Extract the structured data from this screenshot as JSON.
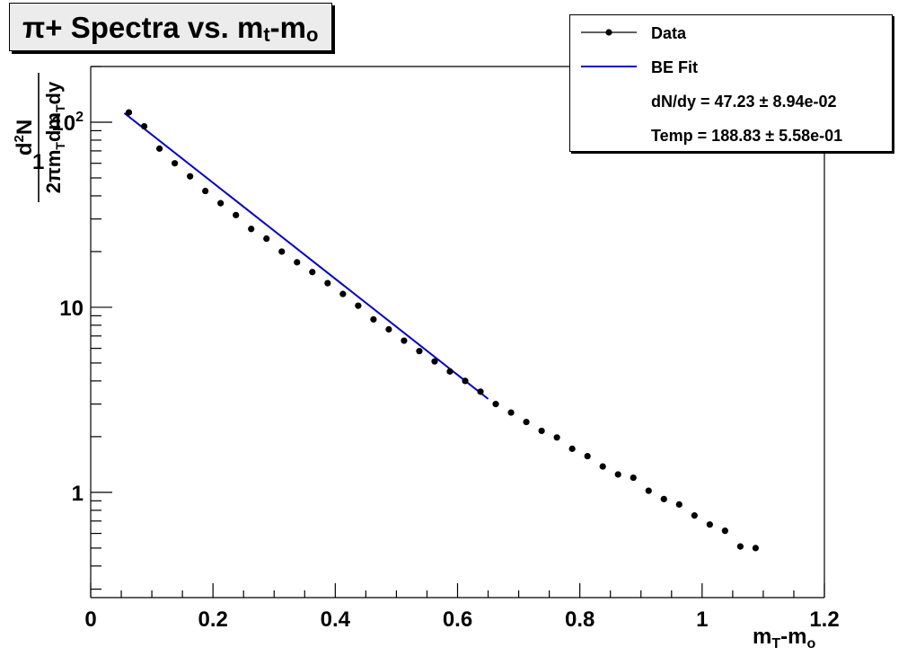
{
  "chart_data": {
    "type": "scatter",
    "title": "π+ Spectra vs. m_t-m_o",
    "title_main": "π+ Spectra vs. m",
    "title_sub1": "t",
    "title_mid": "-m",
    "title_sub2": "o",
    "xlabel": "m_T-m_o",
    "xlabel_main": "m",
    "xlabel_sub1": "T",
    "xlabel_mid": "-m",
    "xlabel_sub2": "o",
    "ylabel": "1/(2πm_T dm_T dy) d²N",
    "xlim": [
      0,
      1.2
    ],
    "ylim": [
      0.27,
      200
    ],
    "yscale": "log",
    "grid": false,
    "x_ticks": [
      "0",
      "0.2",
      "0.4",
      "0.6",
      "0.8",
      "1",
      "1.2"
    ],
    "x_tick_values": [
      0,
      0.2,
      0.4,
      0.6,
      0.8,
      1.0,
      1.2
    ],
    "y_ticks": [
      "1",
      "10",
      "10²"
    ],
    "y_tick_values": [
      1,
      10,
      100
    ],
    "legend_position": "top-right",
    "series": [
      {
        "name": "Data",
        "color": "#000000",
        "x": [
          0.0625,
          0.0875,
          0.1125,
          0.1375,
          0.1625,
          0.1875,
          0.2125,
          0.2375,
          0.2625,
          0.2875,
          0.3125,
          0.3375,
          0.3625,
          0.3875,
          0.4125,
          0.4375,
          0.4625,
          0.4875,
          0.5125,
          0.5375,
          0.5625,
          0.5875,
          0.6125,
          0.6375,
          0.6625,
          0.6875,
          0.7125,
          0.7375,
          0.7625,
          0.7875,
          0.8125,
          0.8375,
          0.8625,
          0.8875,
          0.9125,
          0.9375,
          0.9625,
          0.9875,
          1.0125,
          1.0375,
          1.0625,
          1.0875
        ],
        "y": [
          113,
          95,
          72,
          60,
          51,
          42.5,
          36.5,
          31.5,
          26.5,
          23.5,
          20,
          17.5,
          15.5,
          13.5,
          11.8,
          10.2,
          8.6,
          7.6,
          6.6,
          5.8,
          5.1,
          4.5,
          4.0,
          3.5,
          3.0,
          2.7,
          2.4,
          2.15,
          1.98,
          1.72,
          1.57,
          1.38,
          1.25,
          1.2,
          1.02,
          0.92,
          0.86,
          0.75,
          0.67,
          0.62,
          0.51,
          0.5
        ]
      },
      {
        "name": "BE Fit",
        "color": "#0000cc",
        "x": [
          0.055,
          0.65
        ],
        "y": [
          112,
          3.2
        ]
      }
    ],
    "legend": {
      "data_label": "Data",
      "fit_label": "BE Fit",
      "dndy_text": "dN/dy = 47.23 ± 8.94e-02",
      "temp_text": "Temp  = 188.83 ± 5.58e-01"
    }
  }
}
